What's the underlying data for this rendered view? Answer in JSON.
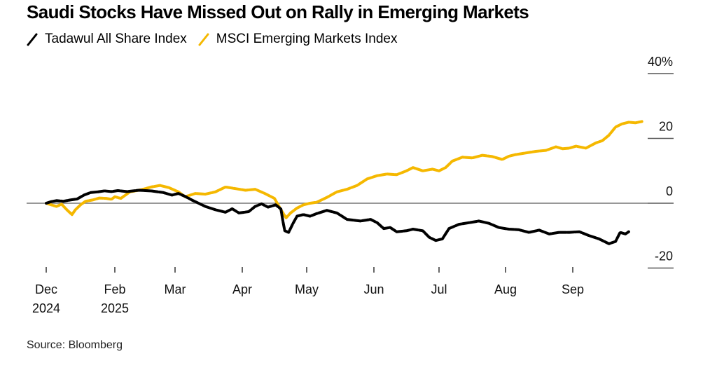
{
  "chart_data": {
    "type": "line",
    "title": "Saudi Stocks Have Missed Out on Rally in Emerging Markets",
    "xlabel": "",
    "ylabel": "",
    "source": "Source: Bloomberg",
    "legend_position": "top-left",
    "grid": false,
    "ylim": [
      -20,
      40
    ],
    "y_ticks": [
      {
        "value": 40,
        "label": "40%"
      },
      {
        "value": 20,
        "label": "20"
      },
      {
        "value": 0,
        "label": "0"
      },
      {
        "value": -20,
        "label": "-20"
      }
    ],
    "x_unit": "months since 2024-12-01",
    "x_ticks": [
      {
        "value": 0,
        "label": "Dec",
        "sublabel": "2024"
      },
      {
        "value": 2,
        "label": "Feb",
        "sublabel": "2025"
      },
      {
        "value": 3,
        "label": "Mar",
        "sublabel": ""
      },
      {
        "value": 4,
        "label": "Apr",
        "sublabel": ""
      },
      {
        "value": 5,
        "label": "May",
        "sublabel": ""
      },
      {
        "value": 6,
        "label": "Jun",
        "sublabel": ""
      },
      {
        "value": 7,
        "label": "Jul",
        "sublabel": ""
      },
      {
        "value": 8,
        "label": "Aug",
        "sublabel": ""
      },
      {
        "value": 9,
        "label": "Sep",
        "sublabel": ""
      }
    ],
    "xlim": [
      0,
      9.75
    ],
    "series": [
      {
        "name": "Tadawul All Share Index",
        "color": "#000000",
        "points": [
          [
            0.0,
            0.0
          ],
          [
            0.15,
            0.5
          ],
          [
            0.3,
            0.8
          ],
          [
            0.5,
            0.6
          ],
          [
            0.7,
            1.0
          ],
          [
            0.9,
            1.3
          ],
          [
            1.1,
            2.5
          ],
          [
            1.3,
            3.3
          ],
          [
            1.5,
            3.5
          ],
          [
            1.7,
            3.8
          ],
          [
            1.9,
            3.6
          ],
          [
            2.05,
            3.9
          ],
          [
            2.2,
            3.6
          ],
          [
            2.4,
            4.0
          ],
          [
            2.6,
            3.8
          ],
          [
            2.8,
            3.3
          ],
          [
            2.95,
            2.5
          ],
          [
            3.05,
            3.0
          ],
          [
            3.15,
            2.1
          ],
          [
            3.25,
            1.0
          ],
          [
            3.35,
            0.0
          ],
          [
            3.45,
            -1.0
          ],
          [
            3.6,
            -2.0
          ],
          [
            3.75,
            -2.8
          ],
          [
            3.85,
            -1.7
          ],
          [
            3.95,
            -3.0
          ],
          [
            4.1,
            -2.6
          ],
          [
            4.2,
            -1.0
          ],
          [
            4.3,
            -0.2
          ],
          [
            4.4,
            -1.2
          ],
          [
            4.52,
            -0.5
          ],
          [
            4.6,
            -1.8
          ],
          [
            4.63,
            -5.5
          ],
          [
            4.66,
            -8.5
          ],
          [
            4.72,
            -9.0
          ],
          [
            4.78,
            -6.5
          ],
          [
            4.85,
            -4.0
          ],
          [
            4.95,
            -3.5
          ],
          [
            5.05,
            -4.0
          ],
          [
            5.15,
            -3.2
          ],
          [
            5.3,
            -2.2
          ],
          [
            5.45,
            -3.0
          ],
          [
            5.6,
            -5.0
          ],
          [
            5.8,
            -5.5
          ],
          [
            5.95,
            -5.0
          ],
          [
            6.05,
            -6.0
          ],
          [
            6.15,
            -7.8
          ],
          [
            6.25,
            -7.5
          ],
          [
            6.35,
            -8.8
          ],
          [
            6.5,
            -8.5
          ],
          [
            6.6,
            -8.0
          ],
          [
            6.75,
            -8.5
          ],
          [
            6.85,
            -10.5
          ],
          [
            6.95,
            -11.5
          ],
          [
            7.05,
            -11.0
          ],
          [
            7.15,
            -7.8
          ],
          [
            7.3,
            -6.5
          ],
          [
            7.45,
            -6.0
          ],
          [
            7.6,
            -5.5
          ],
          [
            7.75,
            -6.2
          ],
          [
            7.9,
            -7.5
          ],
          [
            8.05,
            -8.0
          ],
          [
            8.2,
            -8.2
          ],
          [
            8.35,
            -9.0
          ],
          [
            8.5,
            -8.3
          ],
          [
            8.65,
            -9.5
          ],
          [
            8.8,
            -9.0
          ],
          [
            8.95,
            -9.0
          ],
          [
            9.1,
            -8.8
          ],
          [
            9.25,
            -10.0
          ],
          [
            9.4,
            -11.0
          ],
          [
            9.55,
            -12.5
          ],
          [
            9.65,
            -11.8
          ],
          [
            9.72,
            -9.0
          ],
          [
            9.8,
            -9.5
          ],
          [
            9.85,
            -8.8
          ]
        ]
      },
      {
        "name": "MSCI Emerging Markets Index",
        "color": "#f5b800",
        "points": [
          [
            0.0,
            0.0
          ],
          [
            0.15,
            -0.5
          ],
          [
            0.3,
            -1.0
          ],
          [
            0.45,
            -0.3
          ],
          [
            0.6,
            -2.0
          ],
          [
            0.75,
            -3.5
          ],
          [
            0.85,
            -2.0
          ],
          [
            1.0,
            -0.5
          ],
          [
            1.15,
            0.6
          ],
          [
            1.35,
            1.0
          ],
          [
            1.55,
            1.6
          ],
          [
            1.75,
            1.5
          ],
          [
            1.9,
            1.2
          ],
          [
            2.0,
            2.0
          ],
          [
            2.1,
            1.5
          ],
          [
            2.25,
            3.5
          ],
          [
            2.45,
            4.2
          ],
          [
            2.6,
            5.0
          ],
          [
            2.75,
            5.5
          ],
          [
            2.9,
            4.8
          ],
          [
            3.05,
            3.5
          ],
          [
            3.15,
            2.0
          ],
          [
            3.3,
            3.0
          ],
          [
            3.45,
            2.8
          ],
          [
            3.6,
            3.5
          ],
          [
            3.75,
            5.0
          ],
          [
            3.9,
            4.5
          ],
          [
            4.05,
            4.0
          ],
          [
            4.2,
            4.3
          ],
          [
            4.35,
            3.0
          ],
          [
            4.5,
            1.5
          ],
          [
            4.6,
            -2.0
          ],
          [
            4.68,
            -4.5
          ],
          [
            4.75,
            -3.0
          ],
          [
            4.85,
            -1.5
          ],
          [
            4.95,
            -0.5
          ],
          [
            5.05,
            0.0
          ],
          [
            5.15,
            0.3
          ],
          [
            5.3,
            1.8
          ],
          [
            5.45,
            3.5
          ],
          [
            5.6,
            4.3
          ],
          [
            5.75,
            5.5
          ],
          [
            5.9,
            7.5
          ],
          [
            6.05,
            8.5
          ],
          [
            6.2,
            9.0
          ],
          [
            6.35,
            8.8
          ],
          [
            6.5,
            10.0
          ],
          [
            6.6,
            11.0
          ],
          [
            6.75,
            10.0
          ],
          [
            6.9,
            10.5
          ],
          [
            7.0,
            10.0
          ],
          [
            7.1,
            11.0
          ],
          [
            7.2,
            13.0
          ],
          [
            7.35,
            14.2
          ],
          [
            7.5,
            14.0
          ],
          [
            7.65,
            14.8
          ],
          [
            7.8,
            14.4
          ],
          [
            7.95,
            13.5
          ],
          [
            8.05,
            14.5
          ],
          [
            8.15,
            15.0
          ],
          [
            8.3,
            15.5
          ],
          [
            8.45,
            16.0
          ],
          [
            8.6,
            16.3
          ],
          [
            8.75,
            17.4
          ],
          [
            8.85,
            16.8
          ],
          [
            8.95,
            17.0
          ],
          [
            9.05,
            17.6
          ],
          [
            9.2,
            17.0
          ],
          [
            9.35,
            18.6
          ],
          [
            9.45,
            19.3
          ],
          [
            9.55,
            21.0
          ],
          [
            9.65,
            23.5
          ],
          [
            9.75,
            24.5
          ],
          [
            9.85,
            25.0
          ],
          [
            9.95,
            24.8
          ],
          [
            10.05,
            25.2
          ]
        ]
      }
    ]
  }
}
